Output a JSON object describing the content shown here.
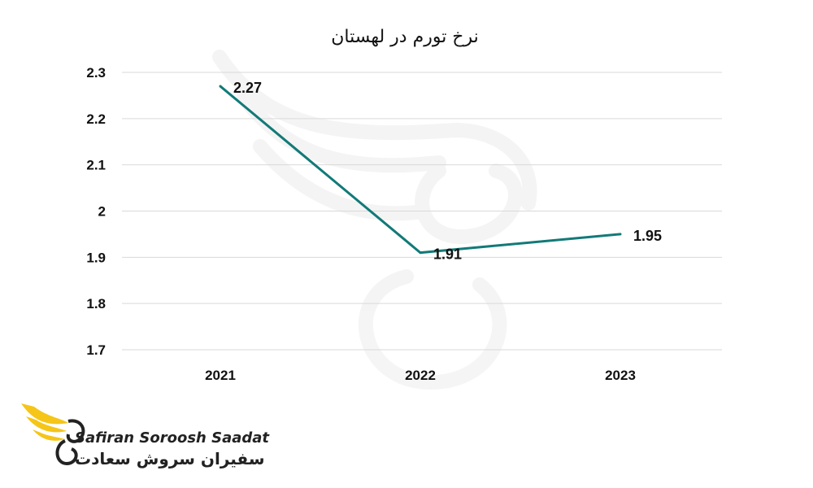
{
  "chart_data": {
    "type": "line",
    "title": "نرخ تورم در لهستان",
    "categories": [
      "2021",
      "2022",
      "2023"
    ],
    "series": [
      {
        "values": [
          2.27,
          1.91,
          1.95
        ],
        "color": "#127a78"
      }
    ],
    "y_ticks": [
      "2.3",
      "2.2",
      "2.1",
      "2",
      "1.9",
      "1.8",
      "1.7"
    ],
    "ylim": [
      1.7,
      2.3
    ],
    "grid": true,
    "data_labels": [
      "2.27",
      "1.91",
      "1.95"
    ]
  },
  "brand": {
    "name_en": "Safiran Soroosh Saadat",
    "name_fa": "سفیران سروش سعادت",
    "accent_color": "#f5c518"
  }
}
